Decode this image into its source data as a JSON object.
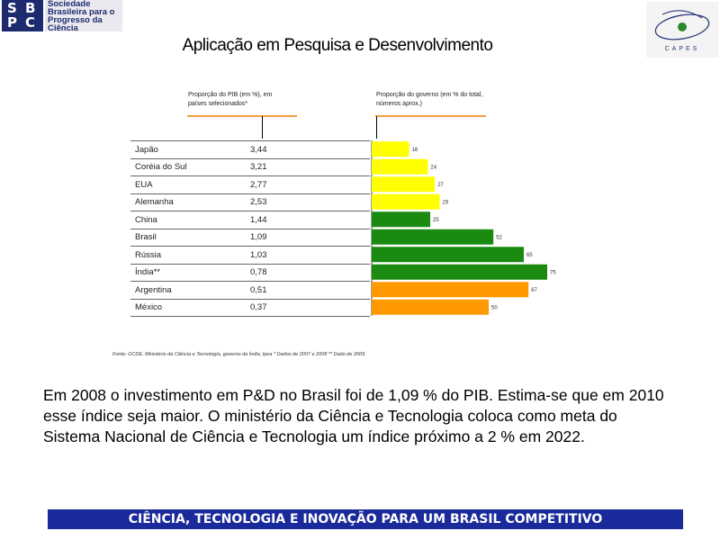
{
  "logos": {
    "sbpc": {
      "letters": [
        "S",
        "B",
        "P",
        "C"
      ],
      "lines": [
        "Sociedade",
        "Brasileira para o",
        "Progresso da",
        "Ciência"
      ]
    },
    "capes": {
      "word": "CAPES"
    }
  },
  "slide": {
    "title": "Aplicação em Pesquisa e Desenvolvimento",
    "body": "Em 2008 o investimento em P&D no Brasil foi de 1,09 % do PIB. Estima-se que em 2010 esse índice seja maior. O ministério da Ciência e Tecnologia coloca como meta do Sistema Nacional de Ciência e Tecnologia um índice próximo a 2 % em 2022.",
    "source": "Fonte: OCDE, Ministério da Ciência e Tecnologia, governo da Índia, Ipea * Dados de 2007 e 2008 ** Dado de 2009.",
    "footer": "CIÊNCIA, TECNOLOGIA E INOVAÇÃO PARA UM BRASIL COMPETITIVO"
  },
  "chart_data": {
    "type": "table",
    "columns": [
      "Proporção do PIB (em %), em países selecionados*",
      "Proporção do governo (em % do total, números aprox.)"
    ],
    "categories": [
      "Japão",
      "Coréia do Sul",
      "EUA",
      "Alemanha",
      "China",
      "Brasil",
      "Rússia",
      "Índia**",
      "Argentina",
      "México"
    ],
    "gdp_share_labels": [
      "3,44",
      "3,21",
      "2,77",
      "2,53",
      "1,44",
      "1,09",
      "1,03",
      "0,78",
      "0,51",
      "0,37"
    ],
    "series": [
      {
        "values": [
          3.44,
          3.21,
          2.77,
          2.53,
          1.44,
          1.09,
          1.03,
          0.78,
          0.51,
          0.37
        ]
      },
      {
        "values": [
          16,
          24,
          27,
          29,
          25,
          52,
          65,
          75,
          67,
          50
        ]
      }
    ],
    "government_share_labels": [
      "16",
      "24",
      "27",
      "29",
      "25",
      "52",
      "65",
      "75",
      "67",
      "50"
    ],
    "bar_colors": [
      "#ffff00",
      "#ffff00",
      "#ffff00",
      "#ffff00",
      "#1a8a10",
      "#1a8a10",
      "#1a8a10",
      "#1a8a10",
      "#ff9900",
      "#ff9900"
    ],
    "bar_ylim": [
      0,
      100
    ],
    "gridlines": false
  }
}
